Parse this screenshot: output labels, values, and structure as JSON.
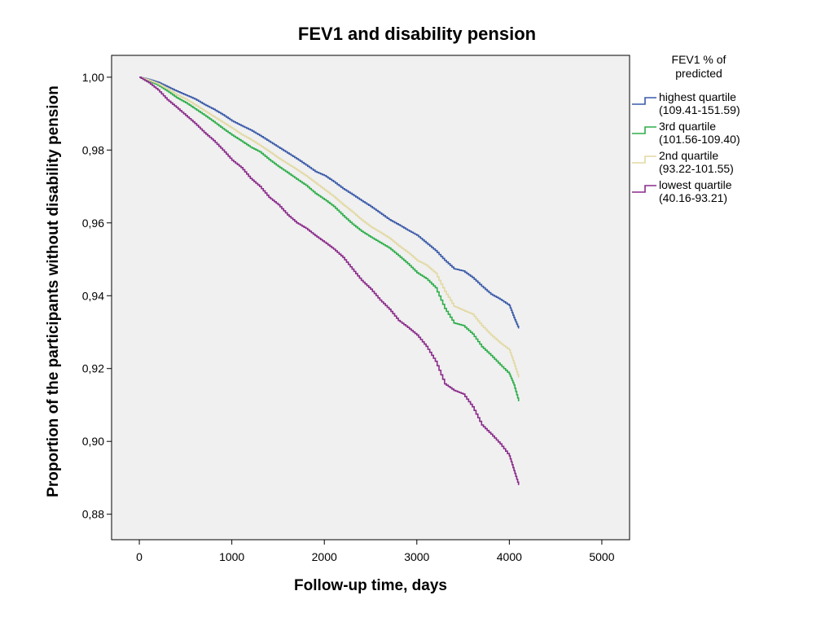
{
  "chart_data": {
    "type": "line",
    "title": "FEV1 and disability pension",
    "xlabel": "Follow-up time, days",
    "ylabel": "Proportion of the participants without disability pension",
    "xlim": [
      -300,
      5300
    ],
    "ylim": [
      0.873,
      1.006
    ],
    "x_ticks": [
      0,
      1000,
      2000,
      3000,
      4000,
      5000
    ],
    "x_tick_labels": [
      "0",
      "1000",
      "2000",
      "3000",
      "4000",
      "5000"
    ],
    "y_ticks": [
      0.88,
      0.9,
      0.92,
      0.94,
      0.96,
      0.98,
      1.0
    ],
    "y_tick_labels": [
      "0,88",
      "0,90",
      "0,92",
      "0,94",
      "0,96",
      "0,98",
      "1,00"
    ],
    "grid": false,
    "plot_background": "#f0f0f0",
    "legend": {
      "position": "right",
      "title_line1": "FEV1 % of",
      "title_line2": "predicted"
    },
    "series": [
      {
        "name": "highest quartile",
        "range": "(109.41-151.59)",
        "color": "#3a5aa8",
        "x": [
          0,
          100,
          200,
          300,
          400,
          500,
          600,
          700,
          800,
          900,
          1000,
          1100,
          1200,
          1300,
          1400,
          1500,
          1600,
          1700,
          1800,
          1900,
          2000,
          2100,
          2200,
          2300,
          2400,
          2500,
          2600,
          2700,
          2800,
          2900,
          3000,
          3100,
          3200,
          3300,
          3400,
          3500,
          3600,
          3700,
          3800,
          3900,
          4000,
          4050,
          4100
        ],
        "y": [
          1.0,
          0.9994,
          0.9986,
          0.9974,
          0.9962,
          0.9951,
          0.994,
          0.9925,
          0.9912,
          0.9897,
          0.988,
          0.9867,
          0.9855,
          0.984,
          0.9824,
          0.9808,
          0.9792,
          0.9776,
          0.9759,
          0.9741,
          0.973,
          0.9713,
          0.9694,
          0.9678,
          0.9661,
          0.9645,
          0.9627,
          0.9609,
          0.9595,
          0.958,
          0.9566,
          0.9545,
          0.9524,
          0.9497,
          0.9474,
          0.9468,
          0.945,
          0.9426,
          0.9404,
          0.939,
          0.9373,
          0.934,
          0.931
        ]
      },
      {
        "name": "3rd quartile",
        "range": "(101.56-109.40)",
        "color": "#2eae4a",
        "x": [
          0,
          100,
          200,
          300,
          400,
          500,
          600,
          700,
          800,
          900,
          1000,
          1100,
          1200,
          1300,
          1400,
          1500,
          1600,
          1700,
          1800,
          1900,
          2000,
          2100,
          2200,
          2300,
          2400,
          2500,
          2600,
          2700,
          2800,
          2900,
          3000,
          3100,
          3200,
          3300,
          3400,
          3500,
          3600,
          3700,
          3800,
          3900,
          4000,
          4050,
          4100
        ],
        "y": [
          1.0,
          0.999,
          0.9978,
          0.9962,
          0.9944,
          0.993,
          0.9913,
          0.9896,
          0.9878,
          0.9859,
          0.9841,
          0.9825,
          0.9808,
          0.9795,
          0.9774,
          0.9755,
          0.9738,
          0.972,
          0.9703,
          0.9681,
          0.9664,
          0.9645,
          0.962,
          0.9597,
          0.9577,
          0.9561,
          0.9546,
          0.9531,
          0.951,
          0.9488,
          0.9463,
          0.9447,
          0.9422,
          0.9365,
          0.9325,
          0.9318,
          0.9295,
          0.926,
          0.9236,
          0.921,
          0.9185,
          0.9155,
          0.911
        ]
      },
      {
        "name": "2nd quartile",
        "range": "(93.22-101.55)",
        "color": "#e2d9a4",
        "x": [
          0,
          100,
          200,
          300,
          400,
          500,
          600,
          700,
          800,
          900,
          1000,
          1100,
          1200,
          1300,
          1400,
          1500,
          1600,
          1700,
          1800,
          1900,
          2000,
          2100,
          2200,
          2300,
          2400,
          2500,
          2600,
          2700,
          2800,
          2900,
          3000,
          3100,
          3200,
          3300,
          3400,
          3500,
          3600,
          3700,
          3800,
          3900,
          4000,
          4050,
          4100
        ],
        "y": [
          1.0,
          0.9992,
          0.9982,
          0.9968,
          0.9952,
          0.994,
          0.9924,
          0.9908,
          0.9892,
          0.9876,
          0.986,
          0.9843,
          0.9829,
          0.9813,
          0.9796,
          0.9778,
          0.9762,
          0.9746,
          0.9729,
          0.971,
          0.9691,
          0.9672,
          0.965,
          0.963,
          0.9608,
          0.9589,
          0.9574,
          0.9558,
          0.9537,
          0.9519,
          0.9497,
          0.9484,
          0.9462,
          0.9412,
          0.9371,
          0.936,
          0.9349,
          0.9318,
          0.9292,
          0.927,
          0.9251,
          0.9215,
          0.9175
        ]
      },
      {
        "name": "lowest quartile",
        "range": "(40.16-93.21)",
        "color": "#8a2a8a",
        "x": [
          0,
          100,
          200,
          300,
          400,
          500,
          600,
          700,
          800,
          900,
          1000,
          1100,
          1200,
          1300,
          1400,
          1500,
          1600,
          1700,
          1800,
          1900,
          2000,
          2100,
          2200,
          2300,
          2400,
          2500,
          2600,
          2700,
          2800,
          2900,
          3000,
          3100,
          3200,
          3300,
          3400,
          3500,
          3600,
          3700,
          3800,
          3900,
          4000,
          4050,
          4100
        ],
        "y": [
          1.0,
          0.9985,
          0.9965,
          0.9938,
          0.9917,
          0.9895,
          0.9873,
          0.9848,
          0.9826,
          0.98,
          0.9772,
          0.9752,
          0.9722,
          0.97,
          0.967,
          0.965,
          0.9622,
          0.96,
          0.9585,
          0.9565,
          0.9547,
          0.9528,
          0.9505,
          0.9473,
          0.9442,
          0.9418,
          0.9388,
          0.9363,
          0.9332,
          0.9313,
          0.9292,
          0.9261,
          0.922,
          0.9158,
          0.914,
          0.913,
          0.9095,
          0.9045,
          0.902,
          0.8993,
          0.896,
          0.892,
          0.888
        ]
      }
    ]
  }
}
